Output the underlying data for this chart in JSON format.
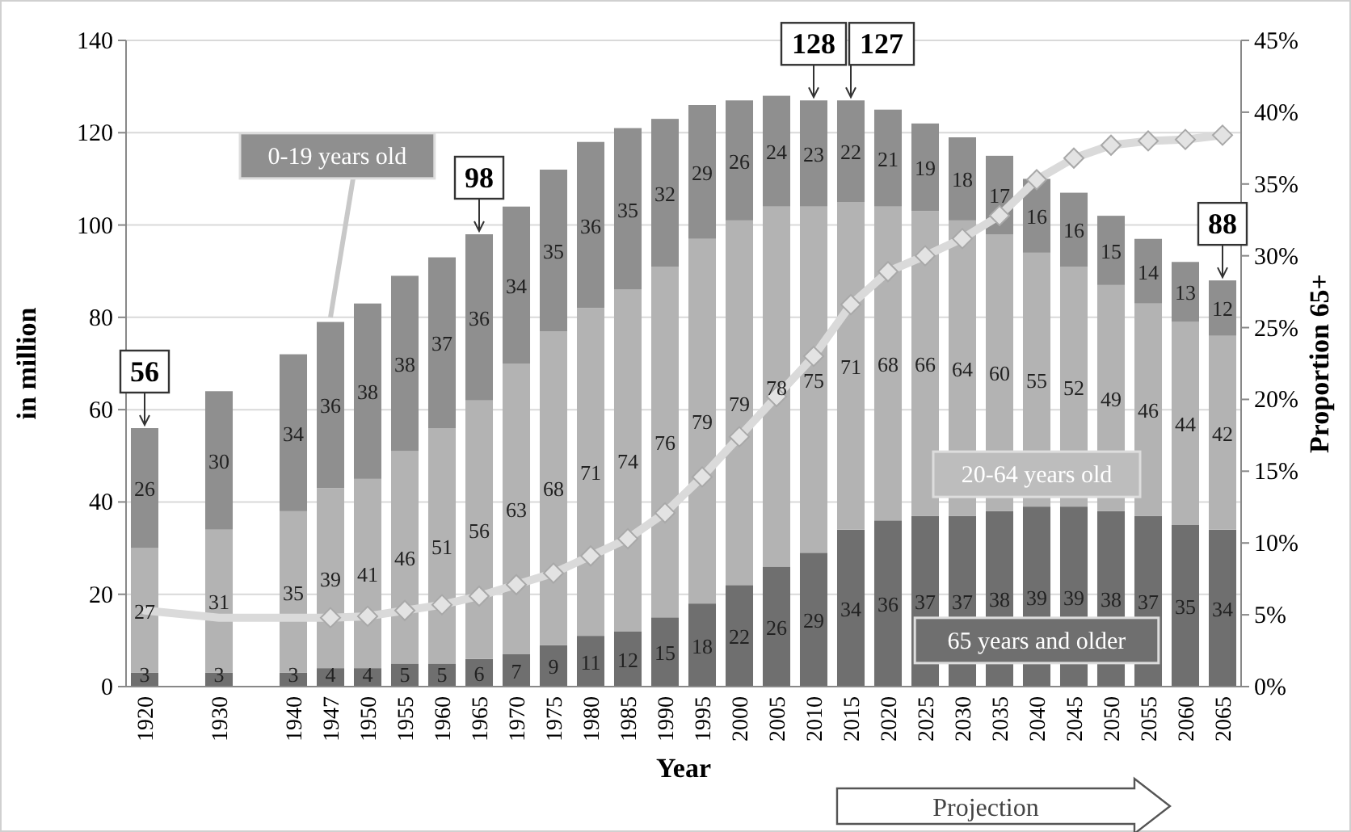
{
  "chart_data": {
    "type": "bar",
    "stacked": true,
    "xlabel": "Year",
    "ylabel": "in million",
    "y2label": "Proportion 65+",
    "categories": [
      "1920",
      null,
      "1930",
      null,
      "1940",
      "1947",
      "1950",
      "1955",
      "1960",
      "1965",
      "1970",
      "1975",
      "1980",
      "1985",
      "1990",
      "1995",
      "2000",
      "2005",
      "2010",
      "2015",
      "2020",
      "2025",
      "2030",
      "2035",
      "2040",
      "2045",
      "2050",
      "2055",
      "2060",
      "2065"
    ],
    "ylim": [
      0,
      140
    ],
    "yticks": [
      0,
      20,
      40,
      60,
      80,
      100,
      120,
      140
    ],
    "y2lim": [
      0,
      45
    ],
    "y2ticks": [
      {
        "value": 0,
        "label": "0%"
      },
      {
        "value": 5,
        "label": "5%"
      },
      {
        "value": 10,
        "label": "10%"
      },
      {
        "value": 15,
        "label": "15%"
      },
      {
        "value": 20,
        "label": "20%"
      },
      {
        "value": 25,
        "label": "25%"
      },
      {
        "value": 30,
        "label": "30%"
      },
      {
        "value": 35,
        "label": "35%"
      },
      {
        "value": 40,
        "label": "40%"
      },
      {
        "value": 45,
        "label": "45%"
      }
    ],
    "grid": "y",
    "legend": false,
    "series": [
      {
        "name": "65 years and older",
        "color": "#6f6f6f",
        "values": [
          3,
          null,
          3,
          null,
          3,
          4,
          4,
          5,
          5,
          6,
          7,
          9,
          11,
          12,
          15,
          18,
          22,
          26,
          29,
          34,
          36,
          37,
          37,
          38,
          39,
          39,
          38,
          37,
          35,
          34
        ],
        "value_labels": [
          "3",
          null,
          "3",
          null,
          "3",
          "4",
          "4",
          "5",
          "5",
          "6",
          "7",
          "9",
          "11",
          "12",
          "15",
          "18",
          "22",
          "26",
          "29",
          "34",
          "36",
          "37",
          "37",
          "38",
          "39",
          "39",
          "38",
          "37",
          "35",
          "34"
        ]
      },
      {
        "name": "20-64 years old",
        "color": "#b3b3b3",
        "values": [
          27,
          null,
          31,
          null,
          35,
          39,
          41,
          46,
          51,
          56,
          63,
          68,
          71,
          74,
          76,
          79,
          79,
          78,
          75,
          71,
          68,
          66,
          64,
          60,
          55,
          52,
          49,
          46,
          44,
          42
        ],
        "value_labels": [
          "27",
          null,
          "31",
          null,
          "35",
          "39",
          "41",
          "46",
          "51",
          "56",
          "63",
          "68",
          "71",
          "74",
          "76",
          "79",
          "79",
          "78",
          "75",
          "71",
          "68",
          "66",
          "64",
          "60",
          "55",
          "52",
          "49",
          "46",
          "44",
          "42"
        ]
      },
      {
        "name": "0-19 years old",
        "color": "#8f8f8f",
        "values": [
          26,
          null,
          30,
          null,
          34,
          36,
          38,
          38,
          37,
          36,
          34,
          35,
          36,
          35,
          32,
          29,
          26,
          24,
          23,
          22,
          21,
          19,
          18,
          17,
          16,
          16,
          15,
          14,
          13,
          12
        ],
        "value_labels": [
          "26",
          null,
          "30",
          null,
          "34",
          "36",
          "38",
          "38",
          "37",
          "36",
          "34",
          "35",
          "36",
          "35",
          "32",
          "29",
          "26",
          "24",
          "23",
          "22",
          "21",
          "19",
          "18",
          "17",
          "16",
          "16",
          "15",
          "14",
          "13",
          "12"
        ]
      },
      {
        "type": "line",
        "axis": "y2",
        "color": "#dadada",
        "marker": "none",
        "values": [
          5.3,
          null,
          4.8,
          null,
          4.8,
          4.8,
          null,
          null,
          null,
          null,
          null,
          null,
          null,
          null,
          null,
          null,
          null,
          null,
          null,
          null,
          null,
          null,
          null,
          null,
          null,
          null,
          null,
          null,
          null,
          null
        ]
      },
      {
        "type": "line",
        "axis": "y2",
        "color": "#dadada",
        "marker": "diamond",
        "values": [
          null,
          null,
          null,
          null,
          null,
          4.8,
          4.9,
          5.3,
          5.7,
          6.3,
          7.1,
          7.9,
          9.1,
          10.3,
          12.1,
          14.6,
          17.4,
          20.2,
          23.0,
          26.6,
          28.9,
          30.0,
          31.2,
          32.8,
          35.3,
          36.8,
          37.7,
          38.0,
          38.1,
          38.4
        ]
      }
    ],
    "annotations": [
      {
        "text": "56",
        "x": "1920",
        "y": 56
      },
      {
        "text": "98",
        "x": "1965",
        "y": 98
      },
      {
        "text": "128",
        "x": "2010",
        "y": 127
      },
      {
        "text": "127",
        "x": "2015",
        "y": 127
      },
      {
        "text": "88",
        "x": "2065",
        "y": 88
      },
      "Projection"
    ]
  }
}
